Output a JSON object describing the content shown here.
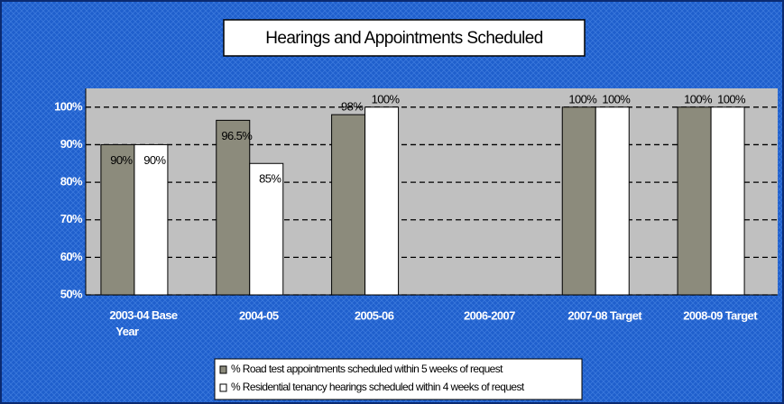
{
  "chart_data": {
    "type": "bar",
    "title": "Hearings and Appointments Scheduled",
    "categories": [
      "2003-04 Base Year",
      "2004-05",
      "2005-06",
      "2006-2007",
      "2007-08 Target",
      "2008-09 Target"
    ],
    "series": [
      {
        "name": "% Road test appointments scheduled within 5 weeks of request",
        "color": "#8c8b7c",
        "values": [
          90,
          96.5,
          98,
          null,
          100,
          100
        ],
        "value_labels": [
          "90%",
          "96.5%",
          "98%",
          null,
          "100%",
          "100%"
        ]
      },
      {
        "name": "% Residential tenancy hearings scheduled within 4 weeks of request",
        "color": "#ffffff",
        "values": [
          90,
          85,
          100,
          null,
          100,
          100
        ],
        "value_labels": [
          "90%",
          "85%",
          "100%",
          null,
          "100%",
          "100%"
        ]
      }
    ],
    "ylim": [
      50,
      105
    ],
    "yticks": [
      {
        "value": 50,
        "label": "50%"
      },
      {
        "value": 60,
        "label": "60%"
      },
      {
        "value": 70,
        "label": "70%"
      },
      {
        "value": 80,
        "label": "80%"
      },
      {
        "value": 90,
        "label": "90%"
      },
      {
        "value": 100,
        "label": "100%"
      }
    ],
    "grid": true,
    "legend": "bottom"
  }
}
